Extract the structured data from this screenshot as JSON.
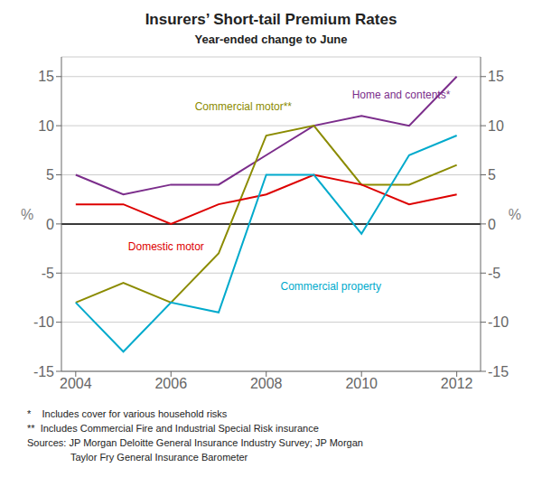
{
  "chart_data": {
    "type": "line",
    "title": "Insurers’ Short-tail Premium Rates",
    "subtitle": "Year-ended change to June",
    "ylabel": "%",
    "y2label": "%",
    "x": [
      2004,
      2005,
      2006,
      2007,
      2008,
      2009,
      2010,
      2011,
      2012
    ],
    "xlim": [
      2003.7,
      2012.5
    ],
    "xticks": [
      2004,
      2006,
      2008,
      2010,
      2012
    ],
    "ylim": [
      -15,
      17
    ],
    "yticks": [
      -15,
      -10,
      -5,
      0,
      5,
      10,
      15
    ],
    "y2lim": [
      -15,
      17
    ],
    "y2ticks": [
      -15,
      -10,
      -5,
      0,
      5,
      10,
      15
    ],
    "grid": true,
    "series": [
      {
        "color": "#7b2d8b",
        "values": [
          5,
          3,
          4,
          4,
          7,
          10,
          11,
          10,
          15
        ]
      },
      {
        "color": "#8b8b00",
        "values": [
          -8,
          -6,
          -8,
          -3,
          9,
          10,
          4,
          4,
          6
        ]
      },
      {
        "color": "#dd0000",
        "values": [
          2,
          2,
          0,
          2,
          3,
          5,
          4,
          2,
          3
        ]
      },
      {
        "color": "#00aacc",
        "values": [
          -8,
          -13,
          -8,
          -9,
          5,
          5,
          -1,
          7,
          9
        ]
      }
    ],
    "annotations": [
      {
        "text": "Home and contents*",
        "x": 2009.8,
        "y": 13.2,
        "color": "#7b2d8b"
      },
      {
        "text": "Commercial motor**",
        "x": 2006.5,
        "y": 12.0,
        "color": "#8b8b00"
      },
      {
        "text": "Domestic motor",
        "x": 2005.1,
        "y": -2.3,
        "color": "#dd0000"
      },
      {
        "text": "Commercial property",
        "x": 2008.3,
        "y": -6.3,
        "color": "#00aacc"
      }
    ],
    "footnotes": [
      "*    Includes cover for various household risks",
      "**  Includes Commercial Fire and Industrial Special Risk insurance",
      "Sources: JP Morgan Deloitte General Insurance Industry Survey; JP Morgan",
      "Taylor Fry General Insurance Barometer"
    ]
  }
}
